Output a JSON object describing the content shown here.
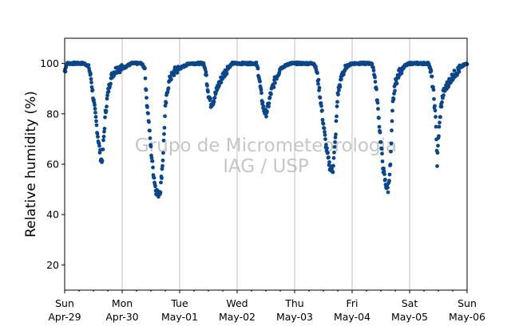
{
  "chart_data": {
    "type": "scatter",
    "title": "",
    "xlabel": "",
    "ylabel": "Relative humidity (%)",
    "watermark": [
      "Grupo de Micrometeorologia",
      "IAG / USP"
    ],
    "x_range_hours": [
      0,
      168
    ],
    "ylim": [
      10,
      110
    ],
    "y_ticks": [
      20,
      40,
      60,
      80,
      100
    ],
    "x_ticks": [
      {
        "day": "Sun",
        "date": "Apr-29"
      },
      {
        "day": "Mon",
        "date": "Apr-30"
      },
      {
        "day": "Tue",
        "date": "May-01"
      },
      {
        "day": "Wed",
        "date": "May-02"
      },
      {
        "day": "Thu",
        "date": "May-03"
      },
      {
        "day": "Fri",
        "date": "May-04"
      },
      {
        "day": "Sat",
        "date": "May-05"
      },
      {
        "day": "Sun",
        "date": "May-06"
      }
    ],
    "grid": "vertical",
    "marker_color": "#0b4689",
    "series": [
      {
        "profile": [
          [
            0,
            97
          ],
          [
            1,
            100
          ],
          [
            8,
            100
          ],
          [
            10,
            99
          ],
          [
            11,
            94
          ],
          [
            12,
            86
          ],
          [
            13,
            78
          ],
          [
            14,
            70
          ],
          [
            15,
            63
          ],
          [
            15.5,
            61
          ],
          [
            16,
            66
          ],
          [
            17,
            80
          ],
          [
            18,
            88
          ],
          [
            19,
            93
          ],
          [
            20,
            96
          ],
          [
            22,
            98
          ],
          [
            24,
            98
          ],
          [
            26,
            99
          ],
          [
            28,
            100
          ],
          [
            32,
            100
          ],
          [
            33.5,
            98
          ],
          [
            34,
            88
          ],
          [
            35,
            78
          ],
          [
            36,
            66
          ],
          [
            37,
            57
          ],
          [
            38,
            50
          ],
          [
            39,
            48
          ],
          [
            40,
            50
          ],
          [
            41,
            62
          ],
          [
            42,
            82
          ],
          [
            43,
            90
          ],
          [
            44,
            94
          ],
          [
            46,
            97
          ],
          [
            48,
            98
          ],
          [
            50,
            99
          ],
          [
            52,
            100
          ],
          [
            58,
            100
          ],
          [
            59,
            96
          ],
          [
            60,
            88
          ],
          [
            61,
            84
          ],
          [
            62,
            85
          ],
          [
            63,
            88
          ],
          [
            64,
            91
          ],
          [
            66,
            95
          ],
          [
            68,
            98
          ],
          [
            70,
            100
          ],
          [
            80,
            100
          ],
          [
            81,
            96
          ],
          [
            82,
            88
          ],
          [
            83,
            82
          ],
          [
            84,
            80
          ],
          [
            85,
            83
          ],
          [
            86,
            88
          ],
          [
            88,
            94
          ],
          [
            90,
            98
          ],
          [
            92,
            99
          ],
          [
            94,
            100
          ],
          [
            104,
            100
          ],
          [
            105,
            98
          ],
          [
            106,
            92
          ],
          [
            107,
            84
          ],
          [
            108,
            76
          ],
          [
            109,
            68
          ],
          [
            110,
            62
          ],
          [
            111,
            58
          ],
          [
            112,
            58
          ],
          [
            113,
            70
          ],
          [
            114,
            88
          ],
          [
            116,
            96
          ],
          [
            118,
            99
          ],
          [
            120,
            100
          ],
          [
            128,
            100
          ],
          [
            129,
            98
          ],
          [
            130,
            90
          ],
          [
            131,
            80
          ],
          [
            132,
            68
          ],
          [
            133,
            58
          ],
          [
            134,
            52
          ],
          [
            135,
            50
          ],
          [
            136,
            60
          ],
          [
            137,
            84
          ],
          [
            138,
            92
          ],
          [
            140,
            97
          ],
          [
            142,
            99
          ],
          [
            144,
            100
          ],
          [
            152,
            100
          ],
          [
            153,
            96
          ],
          [
            154,
            88
          ],
          [
            155,
            76
          ],
          [
            155.5,
            60
          ],
          [
            156,
            70
          ],
          [
            157,
            82
          ],
          [
            158,
            88
          ],
          [
            160,
            92
          ],
          [
            162,
            95
          ],
          [
            164,
            97
          ],
          [
            166,
            99
          ],
          [
            168,
            100
          ]
        ]
      }
    ]
  }
}
